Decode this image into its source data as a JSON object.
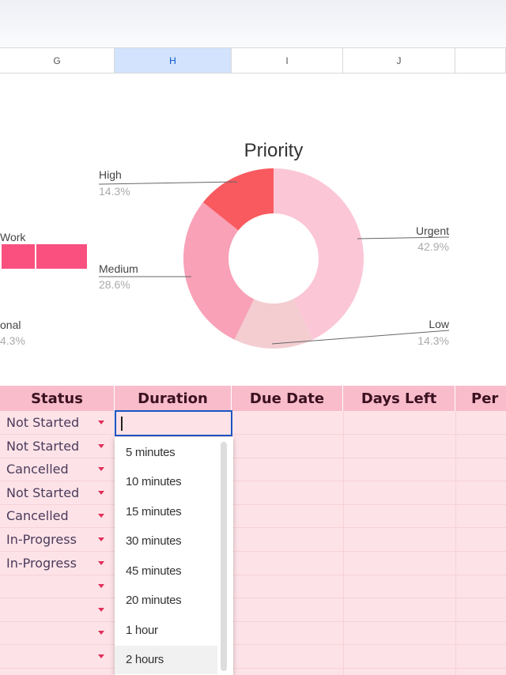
{
  "columns": [
    "G",
    "H",
    "I",
    "J"
  ],
  "chart_data": {
    "type": "pie",
    "title": "Priority",
    "donut": true,
    "slices": [
      {
        "label": "Urgent",
        "value": 42.9,
        "pct": "42.9%",
        "color": "#fbc6d6"
      },
      {
        "label": "Low",
        "value": 14.3,
        "pct": "14.3%",
        "color": "#f3cdd0"
      },
      {
        "label": "Medium",
        "value": 28.6,
        "pct": "28.6%",
        "color": "#f8a1b7"
      },
      {
        "label": "High",
        "value": 14.3,
        "pct": "14.3%",
        "color": "#f95a5f"
      }
    ]
  },
  "left_chart": {
    "work_label": "Work",
    "personal_label": "onal",
    "personal_pct": "4.3%",
    "bar_color": "#f9507f"
  },
  "table": {
    "headers": [
      "Status",
      "Duration",
      "Due Date",
      "Days Left",
      "Per"
    ],
    "statuses": [
      "Not Started",
      "Not Started",
      "Cancelled",
      "Not Started",
      "Cancelled",
      "In-Progress",
      "In-Progress",
      "",
      "",
      "",
      ""
    ]
  },
  "dropdown": {
    "value": "",
    "options": [
      "5 minutes",
      "10 minutes",
      "15 minutes",
      "30 minutes",
      "45 minutes",
      "20 minutes",
      "1 hour",
      "2 hours"
    ],
    "hovered": "2 hours"
  }
}
